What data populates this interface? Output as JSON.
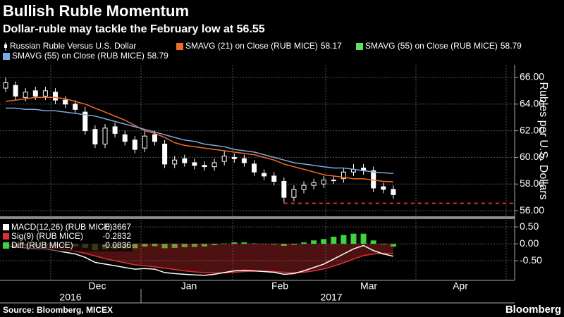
{
  "title": "Bullish Ruble Momentum",
  "subtitle": "Dollar-ruble may tackle the February low at 56.55",
  "source": "Source: Bloomberg, MICEX",
  "logo": "Bloomberg",
  "x_axis": {
    "months": [
      "Dec",
      "Jan",
      "Feb",
      "Mar",
      "Apr"
    ],
    "years": [
      "2016",
      "2017"
    ]
  },
  "chart_data": [
    {
      "type": "candlestick",
      "y_label": "Rubles per U.S. Dollars",
      "ylim": [
        55.58,
        66.95
      ],
      "yticks": [
        {
          "value": 56,
          "label": "56.00"
        },
        {
          "value": 58,
          "label": "58.00"
        },
        {
          "value": 60,
          "label": "60.00"
        },
        {
          "value": 62,
          "label": "62.00"
        },
        {
          "value": 64,
          "label": "64.00"
        },
        {
          "value": 66,
          "label": "66.00"
        }
      ],
      "grid": true,
      "candles": {
        "name": "Russian Ruble Versus U.S. Dollar",
        "color": "#ffffff",
        "open": [
          65.2,
          65.4,
          64.5,
          65.0,
          64.6,
          64.9,
          64.3,
          64.0,
          63.4,
          62.1,
          61.0,
          62.3,
          61.7,
          61.3,
          60.7,
          61.7,
          61.0,
          59.5,
          59.9,
          59.6,
          59.4,
          59.3,
          59.7,
          60.0,
          59.9,
          59.5,
          58.8,
          58.6,
          58.2,
          57.0,
          57.6,
          57.9,
          58.0,
          58.3,
          58.4,
          58.9,
          59.2,
          59.0,
          57.8,
          57.6
        ],
        "high": [
          66.0,
          65.7,
          65.2,
          65.3,
          65.3,
          65.2,
          64.6,
          64.3,
          63.8,
          62.4,
          62.5,
          62.6,
          62.0,
          61.6,
          62.0,
          62.0,
          61.3,
          60.1,
          60.2,
          59.9,
          59.7,
          59.9,
          60.5,
          60.3,
          60.2,
          59.8,
          59.1,
          58.9,
          58.5,
          57.9,
          58.2,
          58.4,
          58.6,
          58.6,
          59.2,
          59.5,
          59.5,
          59.3,
          58.1,
          57.9
        ],
        "low": [
          64.9,
          64.3,
          64.2,
          64.3,
          64.3,
          64.0,
          63.7,
          63.3,
          61.7,
          60.7,
          60.7,
          61.5,
          60.9,
          60.3,
          60.4,
          60.9,
          59.2,
          59.2,
          59.3,
          59.1,
          59.0,
          59.0,
          59.4,
          59.6,
          59.3,
          58.6,
          58.3,
          57.9,
          56.6,
          56.7,
          57.3,
          57.6,
          57.7,
          58.0,
          58.1,
          58.6,
          58.7,
          57.4,
          57.3,
          56.9
        ],
        "close": [
          65.6,
          64.6,
          64.9,
          64.6,
          65.0,
          64.3,
          64.0,
          63.6,
          62.0,
          61.0,
          62.2,
          61.8,
          61.2,
          60.6,
          61.6,
          61.2,
          59.5,
          59.8,
          59.6,
          59.4,
          59.3,
          59.6,
          60.1,
          59.9,
          59.6,
          58.9,
          58.6,
          58.2,
          57.0,
          57.6,
          57.9,
          58.1,
          58.3,
          58.3,
          58.9,
          59.1,
          59.0,
          57.7,
          57.6,
          57.2
        ]
      },
      "series": [
        {
          "name": "SMAVG (21) on Close (RUB MICE)",
          "color": "#f26b2a",
          "values": [
            64.2,
            64.3,
            64.4,
            64.5,
            64.5,
            64.5,
            64.4,
            64.2,
            64.0,
            63.7,
            63.4,
            63.1,
            62.8,
            62.4,
            62.0,
            61.8,
            61.5,
            61.1,
            60.9,
            60.8,
            60.7,
            60.6,
            60.5,
            60.4,
            60.3,
            60.2,
            60.0,
            59.8,
            59.5,
            59.3,
            59.1,
            58.9,
            58.7,
            58.6,
            58.5,
            58.4,
            58.4,
            58.3,
            58.2,
            58.17
          ]
        },
        {
          "name": "SMAVG (55) on Close (RUB MICE)",
          "color": "#7fa8e0",
          "values": [
            63.7,
            63.7,
            63.6,
            63.6,
            63.5,
            63.5,
            63.4,
            63.3,
            63.2,
            63.1,
            62.9,
            62.7,
            62.5,
            62.3,
            62.1,
            61.9,
            61.7,
            61.5,
            61.3,
            61.2,
            61.0,
            60.9,
            60.8,
            60.6,
            60.5,
            60.4,
            60.2,
            60.0,
            59.8,
            59.6,
            59.5,
            59.4,
            59.3,
            59.2,
            59.2,
            59.1,
            59.0,
            58.9,
            58.85,
            58.79
          ]
        }
      ],
      "legend": [
        {
          "name": "SMAVG (21) on Close (RUB MICE)",
          "color": "#f26b2a",
          "value": 58.17
        },
        {
          "name": "SMAVG (55) on Close (RUB MICE)",
          "color": "#5ee05e",
          "value": 58.79
        },
        {
          "name": "SMAVG (55) on Close (RUB MICE)",
          "color": "#7fa8e0",
          "value": 58.79
        }
      ],
      "reference_line": {
        "value": 56.55,
        "color": "#e03030"
      }
    },
    {
      "type": "macd",
      "ylim": [
        -1.08,
        0.71
      ],
      "yticks": [
        {
          "value": 0.5,
          "label": "0.50"
        },
        {
          "value": 0,
          "label": "0.00"
        },
        {
          "value": -0.5,
          "label": "-0.50"
        }
      ],
      "series": [
        {
          "name": "MACD(12,26) (RUB MICE)",
          "color": "#ffffff",
          "values": [
            -0.05,
            -0.1,
            -0.12,
            -0.15,
            -0.15,
            -0.2,
            -0.25,
            -0.3,
            -0.4,
            -0.55,
            -0.6,
            -0.65,
            -0.7,
            -0.75,
            -0.73,
            -0.75,
            -0.85,
            -0.88,
            -0.9,
            -0.92,
            -0.93,
            -0.9,
            -0.85,
            -0.8,
            -0.78,
            -0.8,
            -0.82,
            -0.84,
            -0.9,
            -0.88,
            -0.8,
            -0.7,
            -0.6,
            -0.45,
            -0.3,
            -0.15,
            -0.05,
            -0.2,
            -0.3,
            -0.3667
          ]
        },
        {
          "name": "Sig(9) (RUB MICE)",
          "color": "#e03030",
          "values": [
            0,
            -0.03,
            -0.06,
            -0.09,
            -0.11,
            -0.14,
            -0.18,
            -0.22,
            -0.28,
            -0.36,
            -0.44,
            -0.5,
            -0.56,
            -0.62,
            -0.65,
            -0.68,
            -0.72,
            -0.76,
            -0.8,
            -0.83,
            -0.85,
            -0.86,
            -0.86,
            -0.84,
            -0.82,
            -0.81,
            -0.81,
            -0.82,
            -0.84,
            -0.85,
            -0.84,
            -0.8,
            -0.74,
            -0.66,
            -0.56,
            -0.45,
            -0.35,
            -0.3,
            -0.28,
            -0.2832
          ]
        },
        {
          "name": "Diff (RUB MICE)",
          "color": "#3ed43e",
          "values": [
            -0.05,
            -0.07,
            -0.06,
            -0.06,
            -0.04,
            -0.06,
            -0.07,
            -0.08,
            -0.12,
            -0.19,
            -0.16,
            -0.15,
            -0.14,
            -0.13,
            -0.08,
            -0.07,
            -0.13,
            -0.12,
            -0.1,
            -0.09,
            -0.08,
            -0.04,
            0.01,
            0.04,
            0.04,
            0.01,
            -0.01,
            -0.02,
            -0.06,
            -0.03,
            0.04,
            0.1,
            0.14,
            0.21,
            0.26,
            0.3,
            0.3,
            0.1,
            -0.02,
            -0.0836
          ]
        }
      ]
    }
  ]
}
